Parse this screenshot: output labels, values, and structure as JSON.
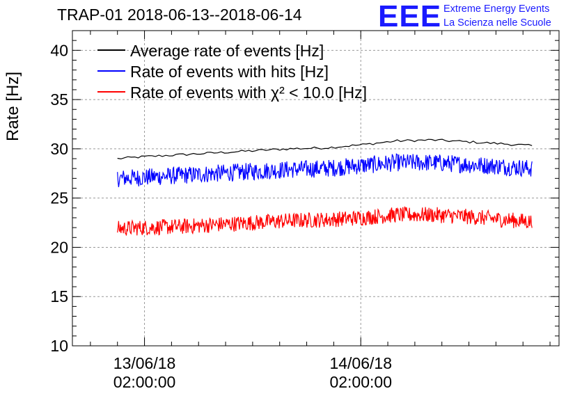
{
  "header": {
    "title": "TRAP-01 2018-06-13--2018-06-14",
    "logo_text": "EEE",
    "logo_line1": "Extreme Energy Events",
    "logo_line2": "La Scienza nelle Scuole"
  },
  "chart_data": {
    "type": "line",
    "ylabel": "Rate [Hz]",
    "xlabel": "",
    "ylim": [
      10,
      42
    ],
    "yticks": [
      10,
      15,
      20,
      25,
      30,
      35,
      40
    ],
    "xlim": [
      "2018-06-12 18:00",
      "2018-06-15 00:00"
    ],
    "xticks": [
      {
        "date": "13/06/18",
        "time": "02:00:00"
      },
      {
        "date": "14/06/18",
        "time": "02:00:00"
      }
    ],
    "grid": true,
    "legend_position": "top-left",
    "series": [
      {
        "name": "Average rate of events [Hz]",
        "color": "#000000",
        "x": [
          "2018-06-12 23:00",
          "2018-06-13 02:00",
          "2018-06-13 06:00",
          "2018-06-13 10:00",
          "2018-06-13 14:00",
          "2018-06-13 18:00",
          "2018-06-13 22:00",
          "2018-06-14 02:00",
          "2018-06-14 06:00",
          "2018-06-14 10:00",
          "2018-06-14 14:00",
          "2018-06-14 18:00",
          "2018-06-14 21:00"
        ],
        "y": [
          29.0,
          29.2,
          29.4,
          29.6,
          29.8,
          30.0,
          30.1,
          30.4,
          30.8,
          30.9,
          30.7,
          30.5,
          30.3
        ]
      },
      {
        "name": "Rate of events with hits [Hz]",
        "color": "#0000ff",
        "x": [
          "2018-06-12 23:00",
          "2018-06-13 02:00",
          "2018-06-13 06:00",
          "2018-06-13 10:00",
          "2018-06-13 14:00",
          "2018-06-13 18:00",
          "2018-06-13 22:00",
          "2018-06-14 02:00",
          "2018-06-14 06:00",
          "2018-06-14 10:00",
          "2018-06-14 14:00",
          "2018-06-14 18:00",
          "2018-06-14 21:00"
        ],
        "y": [
          27.0,
          27.1,
          27.3,
          27.5,
          27.7,
          27.9,
          28.0,
          28.3,
          28.6,
          28.6,
          28.4,
          28.2,
          28.0
        ],
        "noise": 0.9
      },
      {
        "name": "Rate of events with χ² < 10.0 [Hz]",
        "color": "#ff0000",
        "x": [
          "2018-06-12 23:00",
          "2018-06-13 02:00",
          "2018-06-13 06:00",
          "2018-06-13 10:00",
          "2018-06-13 14:00",
          "2018-06-13 18:00",
          "2018-06-13 22:00",
          "2018-06-14 02:00",
          "2018-06-14 06:00",
          "2018-06-14 10:00",
          "2018-06-14 14:00",
          "2018-06-14 18:00",
          "2018-06-14 21:00"
        ],
        "y": [
          21.9,
          22.0,
          22.1,
          22.3,
          22.5,
          22.7,
          22.8,
          23.0,
          23.3,
          23.3,
          23.1,
          22.8,
          22.6
        ],
        "noise": 0.8
      }
    ]
  }
}
